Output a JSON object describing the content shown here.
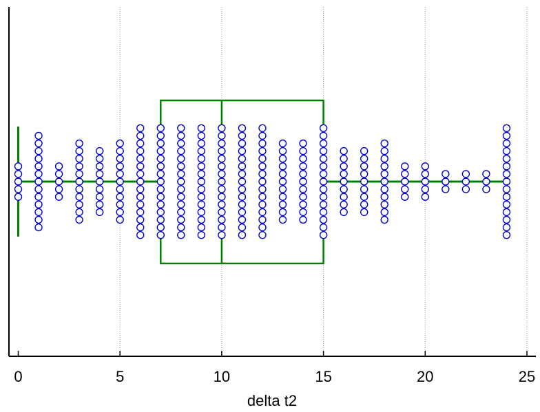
{
  "chart_data": {
    "type": "scatter",
    "subtype": "box-plot-with-jittered-points",
    "orientation": "horizontal",
    "xlabel": "delta t2",
    "xlim": [
      0,
      25
    ],
    "x_ticks": [
      0,
      5,
      10,
      15,
      20,
      25
    ],
    "x_tick_labels": [
      "0",
      "5",
      "10",
      "15",
      "20",
      "25"
    ],
    "grid": "vertical-dotted",
    "box": {
      "whisker_low": 0,
      "q1": 7,
      "median": 10,
      "q3": 15,
      "whisker_high": 24
    },
    "point_counts": [
      {
        "x": 0,
        "count": 5
      },
      {
        "x": 1,
        "count": 13
      },
      {
        "x": 2,
        "count": 5
      },
      {
        "x": 3,
        "count": 11
      },
      {
        "x": 4,
        "count": 9
      },
      {
        "x": 5,
        "count": 11
      },
      {
        "x": 6,
        "count": 15
      },
      {
        "x": 7,
        "count": 15
      },
      {
        "x": 8,
        "count": 15
      },
      {
        "x": 9,
        "count": 15
      },
      {
        "x": 10,
        "count": 15
      },
      {
        "x": 11,
        "count": 15
      },
      {
        "x": 12,
        "count": 15
      },
      {
        "x": 13,
        "count": 11
      },
      {
        "x": 14,
        "count": 11
      },
      {
        "x": 15,
        "count": 15
      },
      {
        "x": 16,
        "count": 9
      },
      {
        "x": 17,
        "count": 9
      },
      {
        "x": 18,
        "count": 11
      },
      {
        "x": 19,
        "count": 5
      },
      {
        "x": 20,
        "count": 5
      },
      {
        "x": 21,
        "count": 3
      },
      {
        "x": 22,
        "count": 3
      },
      {
        "x": 23,
        "count": 3
      },
      {
        "x": 24,
        "count": 15
      }
    ],
    "colors": {
      "box": "#008000",
      "points": "#0000cc",
      "grid": "#999999",
      "axis": "#000000"
    }
  }
}
